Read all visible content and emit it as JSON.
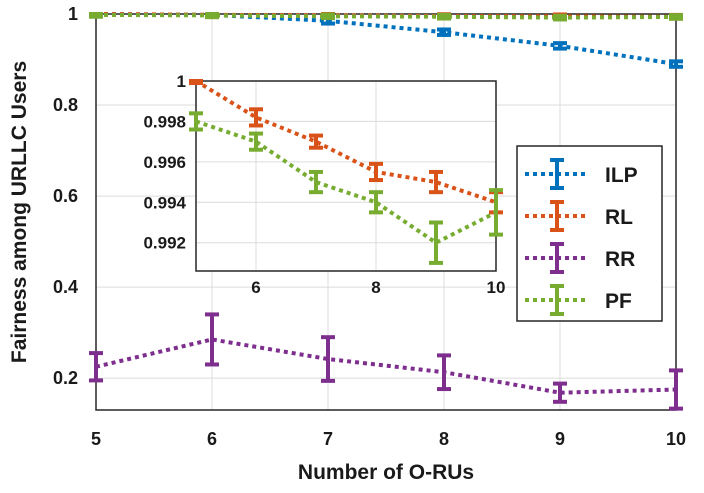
{
  "chart_data": [
    {
      "type": "line",
      "panel": "main",
      "xlabel": "Number of O-RUs",
      "ylabel": "Fairness among URLLC Users",
      "xlim": [
        5,
        10
      ],
      "ylim": [
        0.13,
        1.0
      ],
      "x": [
        5,
        6,
        7,
        8,
        9,
        10
      ],
      "x_ticks": [
        "5",
        "6",
        "7",
        "8",
        "9",
        "10"
      ],
      "y_ticks": [
        {
          "value": 0.2,
          "label": "0.2"
        },
        {
          "value": 0.4,
          "label": "0.4"
        },
        {
          "value": 0.6,
          "label": "0.6"
        },
        {
          "value": 0.8,
          "label": "0.8"
        },
        {
          "value": 1.0,
          "label": "1"
        }
      ],
      "grid": true,
      "legend_position": "right",
      "series": [
        {
          "name": "ILP",
          "color": "#0072BD",
          "values": [
            1.0,
            0.998,
            0.985,
            0.96,
            0.93,
            0.89
          ],
          "errors": [
            0.004,
            0.004,
            0.006,
            0.006,
            0.006,
            0.006
          ]
        },
        {
          "name": "RL",
          "color": "#D95319",
          "values": [
            1.0,
            0.9982,
            0.997,
            0.9955,
            0.995,
            0.994
          ],
          "errors": [
            0.004,
            0.004,
            0.004,
            0.004,
            0.004,
            0.004
          ]
        },
        {
          "name": "RR",
          "color": "#7E2F8E",
          "values": [
            0.225,
            0.285,
            0.242,
            0.213,
            0.168,
            0.175
          ],
          "errors": [
            0.03,
            0.055,
            0.048,
            0.037,
            0.02,
            0.042
          ]
        },
        {
          "name": "PF",
          "color": "#77AC30",
          "values": [
            0.998,
            0.997,
            0.995,
            0.994,
            0.992,
            0.9935
          ],
          "errors": [
            0.004,
            0.004,
            0.004,
            0.004,
            0.004,
            0.004
          ]
        }
      ]
    },
    {
      "type": "line",
      "panel": "inset",
      "xlim": [
        5,
        10
      ],
      "ylim": [
        0.9906,
        1.0
      ],
      "x": [
        5,
        6,
        7,
        8,
        9,
        10
      ],
      "x_ticks": [
        "6",
        "8",
        "10"
      ],
      "y_ticks": [
        {
          "value": 0.992,
          "label": "0.992"
        },
        {
          "value": 0.994,
          "label": "0.994"
        },
        {
          "value": 0.996,
          "label": "0.996"
        },
        {
          "value": 0.998,
          "label": "0.998"
        },
        {
          "value": 1.0,
          "label": "1"
        }
      ],
      "grid": true,
      "series": [
        {
          "name": "RL",
          "color": "#D95319",
          "values": [
            1.0,
            0.9982,
            0.997,
            0.9955,
            0.995,
            0.994
          ],
          "errors": [
            0.0001,
            0.0004,
            0.0003,
            0.0004,
            0.0005,
            0.0005
          ]
        },
        {
          "name": "PF",
          "color": "#77AC30",
          "values": [
            0.998,
            0.997,
            0.995,
            0.994,
            0.992,
            0.9935
          ],
          "errors": [
            0.0004,
            0.0004,
            0.0005,
            0.0005,
            0.001,
            0.0011
          ]
        }
      ]
    }
  ]
}
